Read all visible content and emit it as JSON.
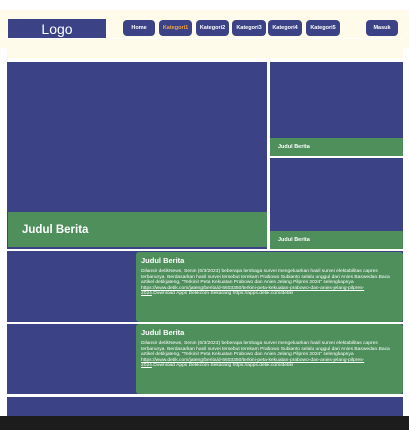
{
  "header": {
    "logo": "Logo",
    "nav": [
      {
        "label": "Home",
        "active": false
      },
      {
        "label": "Kategori1",
        "active": true
      },
      {
        "label": "Kategori2",
        "active": false
      },
      {
        "label": "Kategori3",
        "active": false
      },
      {
        "label": "Kategori4",
        "active": false
      },
      {
        "label": "Kategori5",
        "active": false
      }
    ],
    "login": "Masuk"
  },
  "hero": {
    "caption": "Judul Berita"
  },
  "side": [
    {
      "caption": "Judul Berita"
    },
    {
      "caption": "Judul Berita"
    }
  ],
  "rows": [
    {
      "title": "Judul Berita",
      "text": "Dilansir detikNews, Senin (6/3/2023) beberapa lembaga survei mengeluarkan hasil survei elektabilitas capres terbarunya. Berdasarkan hasil survei tersebut terekam Prabowo Subianto selalu unggul dari Anies Baswedan.Baca artikel detikjateng, \"Terkini! Peta Kekuatan Prabowo dan Anies Jelang Pilpres 2024\" selengkapnya ",
      "link": "https://www.detik.com/jateng/berita/d-6603350/terkini-peta-kekuatan-prabowo-dan-anies-jelang-pilpres-2024",
      "tail": ".Download Apps Detikcom Sekarang https://apps.detik.com/detik/"
    },
    {
      "title": "Judul Berita",
      "text": "Dilansir detikNews, Senin (6/3/2023) beberapa lembaga survei mengeluarkan hasil survei elektabilitas capres terbarunya. Berdasarkan hasil survei tersebut terekam Prabowo Subianto selalu unggul dari Anies Baswedan.Baca artikel detikjateng, \"Terkini! Peta Kekuatan Prabowo dan Anies Jelang Pilpres 2024\" selengkapnya ",
      "link": "https://www.detik.com/jateng/berita/d-6603350/terkini-peta-kekuatan-prabowo-dan-anies-jelang-pilpres-2024",
      "tail": ".Download Apps Detikcom Sekarang https://apps.detik.com/detik/"
    }
  ],
  "colors": {
    "primary": "#3b4386",
    "green": "#4e8f5c",
    "header_bg": "#fffbea",
    "active_nav": "#f4a340"
  }
}
